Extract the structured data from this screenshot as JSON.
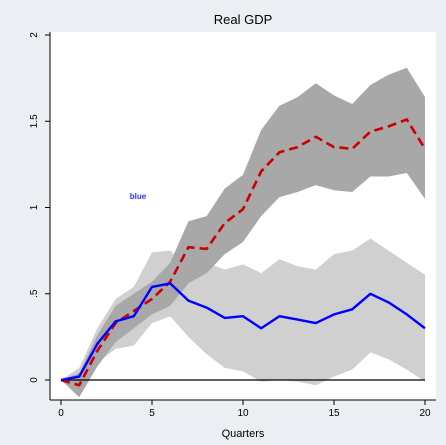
{
  "chart_data": {
    "type": "line",
    "title": "Real GDP",
    "xlabel": "Quarters",
    "ylabel": "",
    "xlim": [
      0,
      20
    ],
    "ylim": [
      0,
      2
    ],
    "x_ticks": [
      0,
      5,
      10,
      15,
      20
    ],
    "y_ticks": [
      0,
      0.5,
      1,
      1.5,
      2
    ],
    "y_tick_labels": [
      "0",
      ".5",
      "1",
      "1.5",
      "2"
    ],
    "zero_line": 0,
    "annotation": "blue",
    "x": [
      0,
      1,
      2,
      3,
      4,
      5,
      6,
      7,
      8,
      9,
      10,
      11,
      12,
      13,
      14,
      15,
      16,
      17,
      18,
      19,
      20
    ],
    "series": [
      {
        "style": "dashed",
        "color": "#cc0000",
        "values": [
          0.0,
          -0.03,
          0.17,
          0.33,
          0.4,
          0.47,
          0.57,
          0.77,
          0.76,
          0.91,
          0.99,
          1.21,
          1.32,
          1.35,
          1.41,
          1.35,
          1.34,
          1.44,
          1.47,
          1.51,
          1.34
        ],
        "band_lower": [
          0.0,
          -0.1,
          0.08,
          0.22,
          0.3,
          0.38,
          0.43,
          0.56,
          0.62,
          0.73,
          0.8,
          0.95,
          1.06,
          1.09,
          1.13,
          1.1,
          1.09,
          1.18,
          1.18,
          1.2,
          1.05
        ],
        "band_upper": [
          0.0,
          0.04,
          0.26,
          0.43,
          0.5,
          0.57,
          0.68,
          0.92,
          0.95,
          1.11,
          1.19,
          1.45,
          1.59,
          1.64,
          1.72,
          1.65,
          1.6,
          1.71,
          1.77,
          1.81,
          1.64
        ],
        "band_color": "#a8a8a8"
      },
      {
        "style": "solid",
        "color": "#0000ff",
        "values": [
          0.0,
          0.02,
          0.21,
          0.34,
          0.37,
          0.54,
          0.56,
          0.46,
          0.42,
          0.36,
          0.37,
          0.3,
          0.37,
          0.35,
          0.33,
          0.38,
          0.41,
          0.5,
          0.45,
          0.38,
          0.3
        ],
        "band_lower": [
          0.0,
          -0.05,
          0.1,
          0.18,
          0.2,
          0.33,
          0.37,
          0.25,
          0.15,
          0.07,
          0.05,
          -0.01,
          0.0,
          -0.01,
          -0.03,
          0.02,
          0.06,
          0.16,
          0.12,
          0.06,
          -0.01
        ],
        "band_upper": [
          0.0,
          0.07,
          0.3,
          0.47,
          0.54,
          0.74,
          0.75,
          0.65,
          0.68,
          0.64,
          0.67,
          0.62,
          0.7,
          0.66,
          0.64,
          0.73,
          0.75,
          0.82,
          0.75,
          0.68,
          0.61
        ],
        "band_color": "#d0d0d0"
      }
    ],
    "colors": {
      "background": "#ebeff3",
      "plot_area": "#ffffff",
      "axis": "#000000"
    },
    "grid": false
  }
}
